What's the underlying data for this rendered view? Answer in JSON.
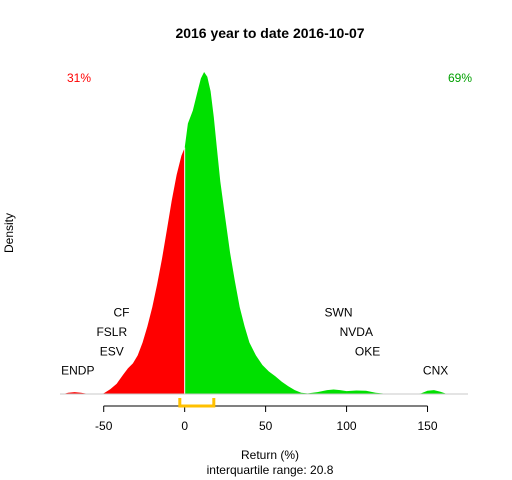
{
  "chart_data": {
    "type": "area",
    "title": "2016  year to date 2016-10-07",
    "xlabel": "Return (%)",
    "ylabel": "Density",
    "subtitle": "interquartile range: 20.8",
    "xlim": [
      -77,
      175
    ],
    "x_ticks": [
      -50,
      0,
      50,
      100,
      150
    ],
    "negative_share": "31%",
    "positive_share": "69%",
    "colors": {
      "negative": "#ff0000",
      "positive": "#00e000",
      "iqr": "#ffc000",
      "axis": "#000000",
      "baseline": "#c8c8c8"
    },
    "interquartile_range": [
      -3,
      18
    ],
    "density": [
      [
        -75,
        0
      ],
      [
        -72,
        0.004
      ],
      [
        -68,
        0.006
      ],
      [
        -64,
        0.004
      ],
      [
        -60,
        0.001
      ],
      [
        -54,
        0
      ],
      [
        -50,
        0.002
      ],
      [
        -46,
        0.015
      ],
      [
        -42,
        0.032
      ],
      [
        -38,
        0.06
      ],
      [
        -35,
        0.08
      ],
      [
        -32,
        0.095
      ],
      [
        -29,
        0.12
      ],
      [
        -26,
        0.16
      ],
      [
        -23,
        0.21
      ],
      [
        -20,
        0.27
      ],
      [
        -17,
        0.34
      ],
      [
        -14,
        0.42
      ],
      [
        -11,
        0.51
      ],
      [
        -8,
        0.6
      ],
      [
        -5,
        0.68
      ],
      [
        -2,
        0.74
      ],
      [
        0,
        0.765
      ],
      [
        2,
        0.84
      ],
      [
        5,
        0.88
      ],
      [
        8,
        0.94
      ],
      [
        10,
        0.98
      ],
      [
        12,
        1.0
      ],
      [
        14,
        0.985
      ],
      [
        16,
        0.94
      ],
      [
        18,
        0.86
      ],
      [
        20,
        0.76
      ],
      [
        22,
        0.66
      ],
      [
        25,
        0.55
      ],
      [
        28,
        0.44
      ],
      [
        31,
        0.35
      ],
      [
        34,
        0.27
      ],
      [
        37,
        0.21
      ],
      [
        40,
        0.16
      ],
      [
        44,
        0.12
      ],
      [
        48,
        0.09
      ],
      [
        52,
        0.07
      ],
      [
        56,
        0.055
      ],
      [
        60,
        0.038
      ],
      [
        64,
        0.024
      ],
      [
        68,
        0.012
      ],
      [
        72,
        0.004
      ],
      [
        76,
        0.002
      ],
      [
        82,
        0.006
      ],
      [
        88,
        0.012
      ],
      [
        92,
        0.014
      ],
      [
        96,
        0.012
      ],
      [
        100,
        0.009
      ],
      [
        106,
        0.011
      ],
      [
        112,
        0.01
      ],
      [
        118,
        0.004
      ],
      [
        124,
        0.001
      ],
      [
        130,
        0
      ],
      [
        140,
        0
      ],
      [
        146,
        0.002
      ],
      [
        150,
        0.01
      ],
      [
        154,
        0.012
      ],
      [
        158,
        0.007
      ],
      [
        162,
        0
      ]
    ],
    "annotations": [
      {
        "text": "CF",
        "x": -39,
        "y": 0.24
      },
      {
        "text": "FSLR",
        "x": -45,
        "y": 0.18
      },
      {
        "text": "ESV",
        "x": -45,
        "y": 0.12
      },
      {
        "text": "ENDP",
        "x": -66,
        "y": 0.06
      },
      {
        "text": "SWN",
        "x": 95,
        "y": 0.24
      },
      {
        "text": "NVDA",
        "x": 106,
        "y": 0.18
      },
      {
        "text": "OKE",
        "x": 113,
        "y": 0.12
      },
      {
        "text": "CNX",
        "x": 155,
        "y": 0.06
      }
    ]
  }
}
